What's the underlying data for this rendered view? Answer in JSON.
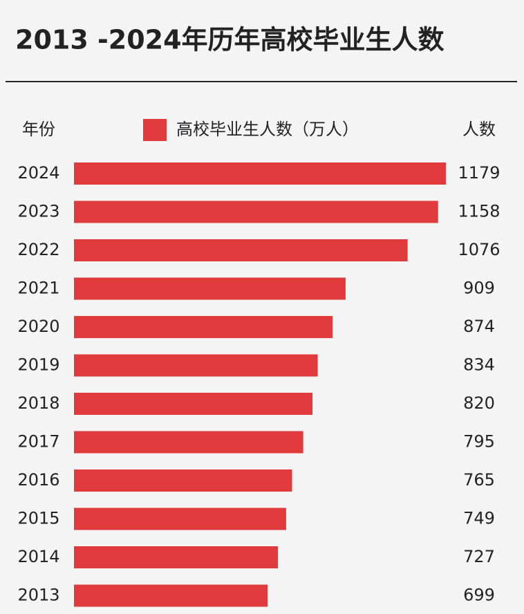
{
  "chart_data": {
    "type": "bar",
    "orientation": "horizontal",
    "title": "2013 -2024年历年高校毕业生人数",
    "category_header": "年份",
    "value_header": "人数",
    "categories": [
      "2024",
      "2023",
      "2022",
      "2021",
      "2020",
      "2019",
      "2018",
      "2017",
      "2016",
      "2015",
      "2014",
      "2013"
    ],
    "series": [
      {
        "name": "高校毕业生人数（万人）",
        "color": "#e03a3c",
        "values": [
          1179,
          1158,
          1076,
          909,
          874,
          834,
          820,
          795,
          765,
          749,
          727,
          699
        ]
      }
    ],
    "xlim": [
      178,
      1179
    ]
  }
}
